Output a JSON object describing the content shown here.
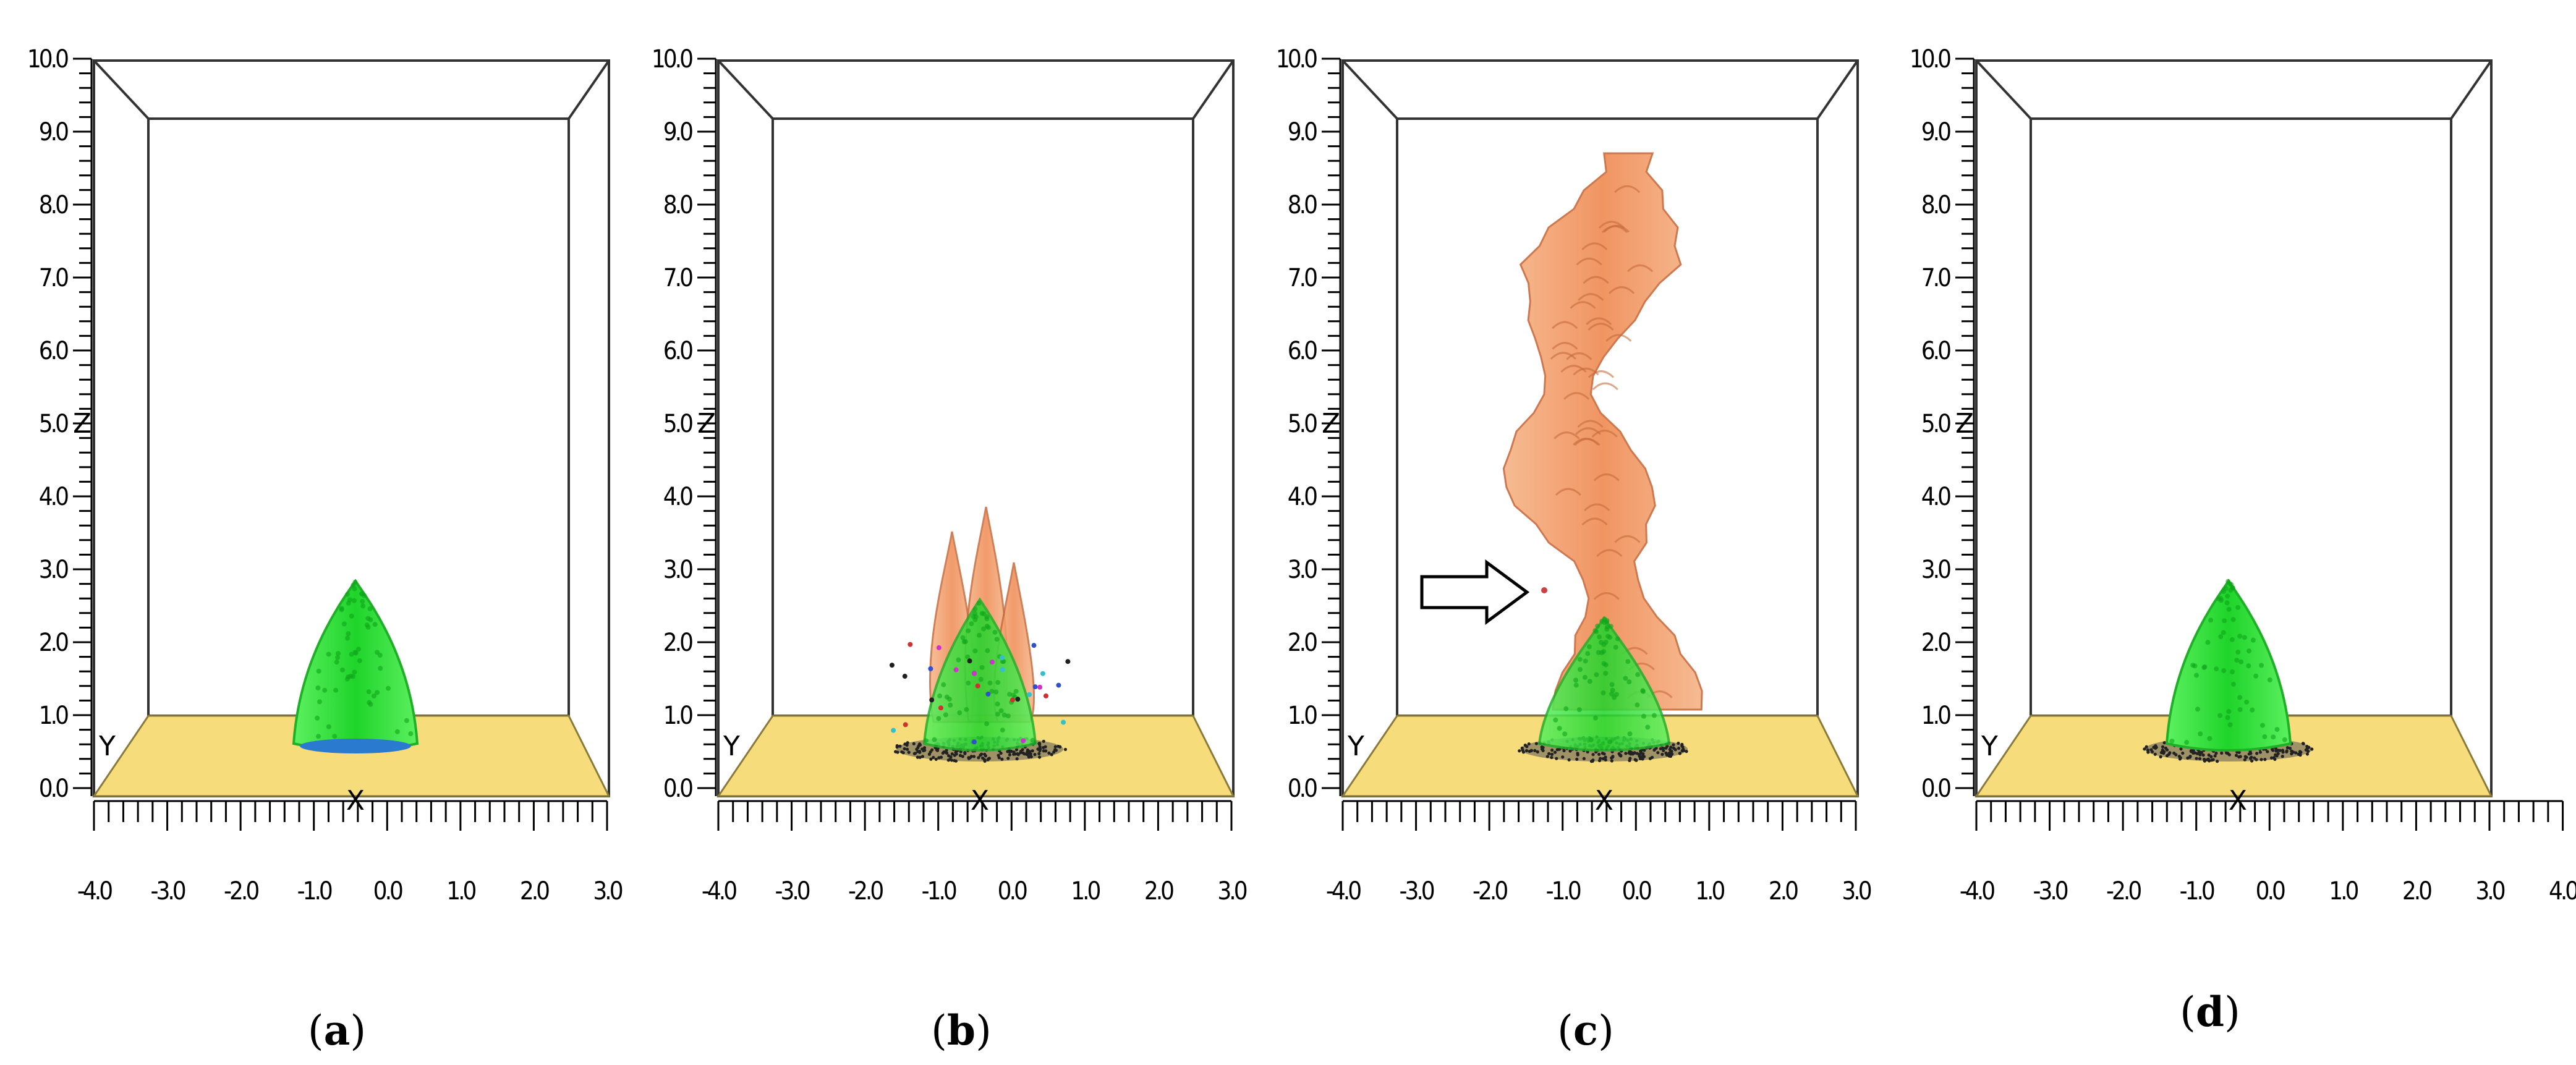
{
  "figure": {
    "panels": [
      {
        "label": "a",
        "z_ticks": [
          "0.0",
          "1.0",
          "2.0",
          "3.0",
          "4.0",
          "5.0",
          "6.0",
          "7.0",
          "8.0",
          "9.0",
          "10.0"
        ],
        "x_ticks": [
          "-4.0",
          "-3.0",
          "-2.0",
          "-1.0",
          "0.0",
          "1.0",
          "2.0",
          "3.0"
        ],
        "axis_letters": {
          "x": "X",
          "y": "Y",
          "z": "Z"
        },
        "plume": "none",
        "cone_height": 28,
        "debris": false,
        "arrow": false
      },
      {
        "label": "b",
        "z_ticks": [
          "0.0",
          "1.0",
          "2.0",
          "3.0",
          "4.0",
          "5.0",
          "6.0",
          "7.0",
          "8.0",
          "9.0",
          "10.0"
        ],
        "x_ticks": [
          "-4.0",
          "-3.0",
          "-2.0",
          "-1.0",
          "0.0",
          "1.0",
          "2.0",
          "3.0"
        ],
        "axis_letters": {
          "x": "X",
          "y": "Y",
          "z": "Z"
        },
        "plume": "short",
        "cone_height": 24,
        "debris": true,
        "arrow": false
      },
      {
        "label": "c",
        "z_ticks": [
          "0.0",
          "1.0",
          "2.0",
          "3.0",
          "4.0",
          "5.0",
          "6.0",
          "7.0",
          "8.0",
          "9.0",
          "10.0"
        ],
        "x_ticks": [
          "-4.0",
          "-3.0",
          "-2.0",
          "-1.0",
          "0.0",
          "1.0",
          "2.0",
          "3.0"
        ],
        "axis_letters": {
          "x": "X",
          "y": "Y",
          "z": "Z"
        },
        "plume": "tall",
        "cone_height": 22,
        "debris": true,
        "arrow": true
      },
      {
        "label": "d",
        "z_ticks": [
          "0.0",
          "1.0",
          "2.0",
          "3.0",
          "4.0",
          "5.0",
          "6.0",
          "7.0",
          "8.0",
          "9.0",
          "10.0"
        ],
        "x_ticks": [
          "-4.0",
          "-3.0",
          "-2.0",
          "-1.0",
          "0.0",
          "1.0",
          "2.0",
          "3.0",
          "4.0"
        ],
        "axis_letters": {
          "x": "X",
          "y": "Y",
          "z": "Z"
        },
        "plume": "none",
        "cone_height": 28,
        "debris": true,
        "arrow": false
      }
    ],
    "colors": {
      "floor": "#f6dc7a",
      "green_fill": "#33e03a",
      "green_edge": "#1fb027",
      "plume": "#f0925a",
      "plume_edge": "#c86a3c",
      "debris": "#222222"
    }
  }
}
